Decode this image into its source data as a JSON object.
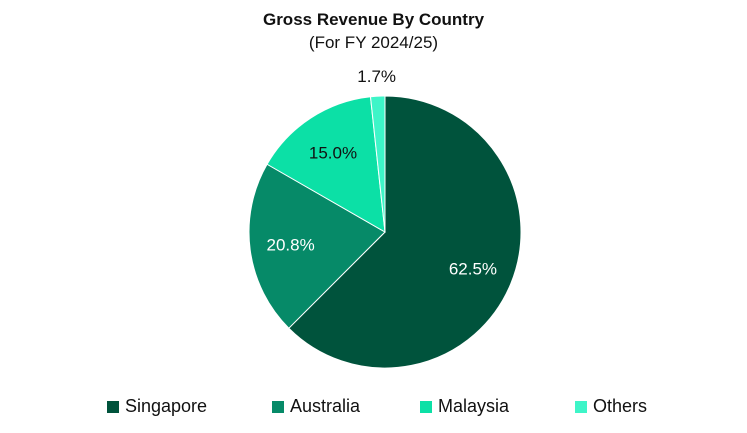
{
  "chart_data": {
    "type": "pie",
    "title": "Gross Revenue By Country",
    "subtitle": "(For FY 2024/25)",
    "categories": [
      "Singapore",
      "Australia",
      "Malaysia",
      "Others"
    ],
    "values": [
      62.5,
      20.8,
      15.0,
      1.7
    ],
    "labels": [
      "62.5%",
      "20.8%",
      "15.0%",
      "1.7%"
    ],
    "colors": [
      "#00533c",
      "#068a68",
      "#0ce0a6",
      "#3ef5c8"
    ],
    "label_colors": [
      "#ffffff",
      "#ffffff",
      "#111111",
      "#111111"
    ],
    "start": "top, clockwise",
    "legend": "bottom"
  }
}
